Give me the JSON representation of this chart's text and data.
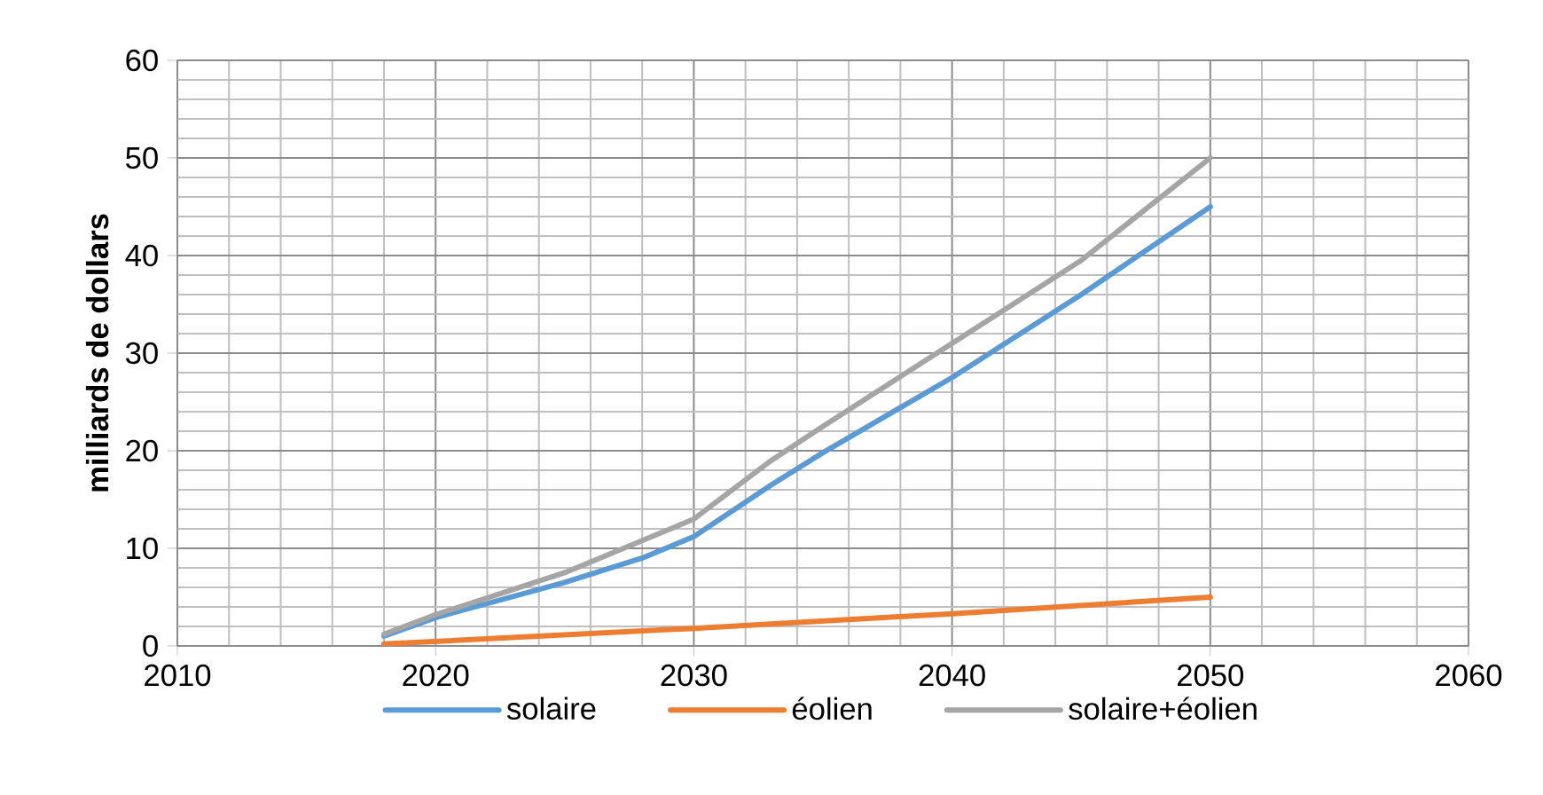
{
  "chart_data": {
    "type": "line",
    "ylabel": "milliards de dollars",
    "xlim": [
      2010,
      2060
    ],
    "xticks": [
      2010,
      2020,
      2030,
      2040,
      2050,
      2060
    ],
    "ylim": [
      0,
      60
    ],
    "yticks": [
      0,
      10,
      20,
      30,
      40,
      50,
      60
    ],
    "grid": true,
    "legend": "bottom",
    "marker": "none",
    "line_style": "solid",
    "series": [
      {
        "name": "solaire",
        "color": "#5b9bd5",
        "x": [
          2018,
          2020,
          2025,
          2028,
          2030,
          2033,
          2035,
          2040,
          2045,
          2050
        ],
        "values": [
          1,
          2.9,
          6.5,
          9,
          11.2,
          16.5,
          19.8,
          27.5,
          36,
          45
        ]
      },
      {
        "name": "éolien",
        "color": "#ed7d31",
        "x": [
          2018,
          2030,
          2040,
          2050
        ],
        "values": [
          0.2,
          1.8,
          3.3,
          5
        ]
      },
      {
        "name": "solaire+éolien",
        "color": "#a5a5a5",
        "x": [
          2018,
          2020,
          2025,
          2028,
          2030,
          2033,
          2035,
          2040,
          2045,
          2050
        ],
        "values": [
          1.2,
          3.2,
          7.5,
          10.8,
          13,
          19,
          22.5,
          31,
          39.5,
          50
        ]
      }
    ]
  }
}
